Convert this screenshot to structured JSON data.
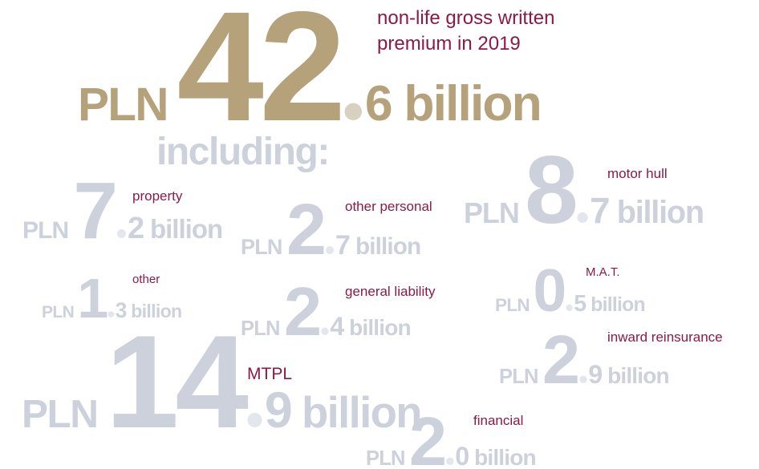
{
  "headline": {
    "currency": "PLN",
    "whole": "42",
    "fraction": "6",
    "unit": "billion",
    "label": [
      "non-life gross written",
      "premium in 2019"
    ]
  },
  "subheading": "including:",
  "items": [
    {
      "currency": "PLN",
      "whole": "7",
      "fraction": "2",
      "unit": "billion",
      "label": "property"
    },
    {
      "currency": "PLN",
      "whole": "2",
      "fraction": "7",
      "unit": "billion",
      "label": "other personal"
    },
    {
      "currency": "PLN",
      "whole": "8",
      "fraction": "7",
      "unit": "billion",
      "label": "motor hull"
    },
    {
      "currency": "PLN",
      "whole": "1",
      "fraction": "3",
      "unit": "billion",
      "label": "other"
    },
    {
      "currency": "PLN",
      "whole": "2",
      "fraction": "4",
      "unit": "billion",
      "label": "general liability"
    },
    {
      "currency": "PLN",
      "whole": "0",
      "fraction": "5",
      "unit": "billion",
      "label": "M.A.T."
    },
    {
      "currency": "PLN",
      "whole": "2",
      "fraction": "9",
      "unit": "billion",
      "label": "inward reinsurance"
    },
    {
      "currency": "PLN",
      "whole": "14",
      "fraction": "9",
      "unit": "billion",
      "label": "MTPL"
    },
    {
      "currency": "PLN",
      "whole": "2",
      "fraction": "0",
      "unit": "billion",
      "label": "financial"
    }
  ]
}
